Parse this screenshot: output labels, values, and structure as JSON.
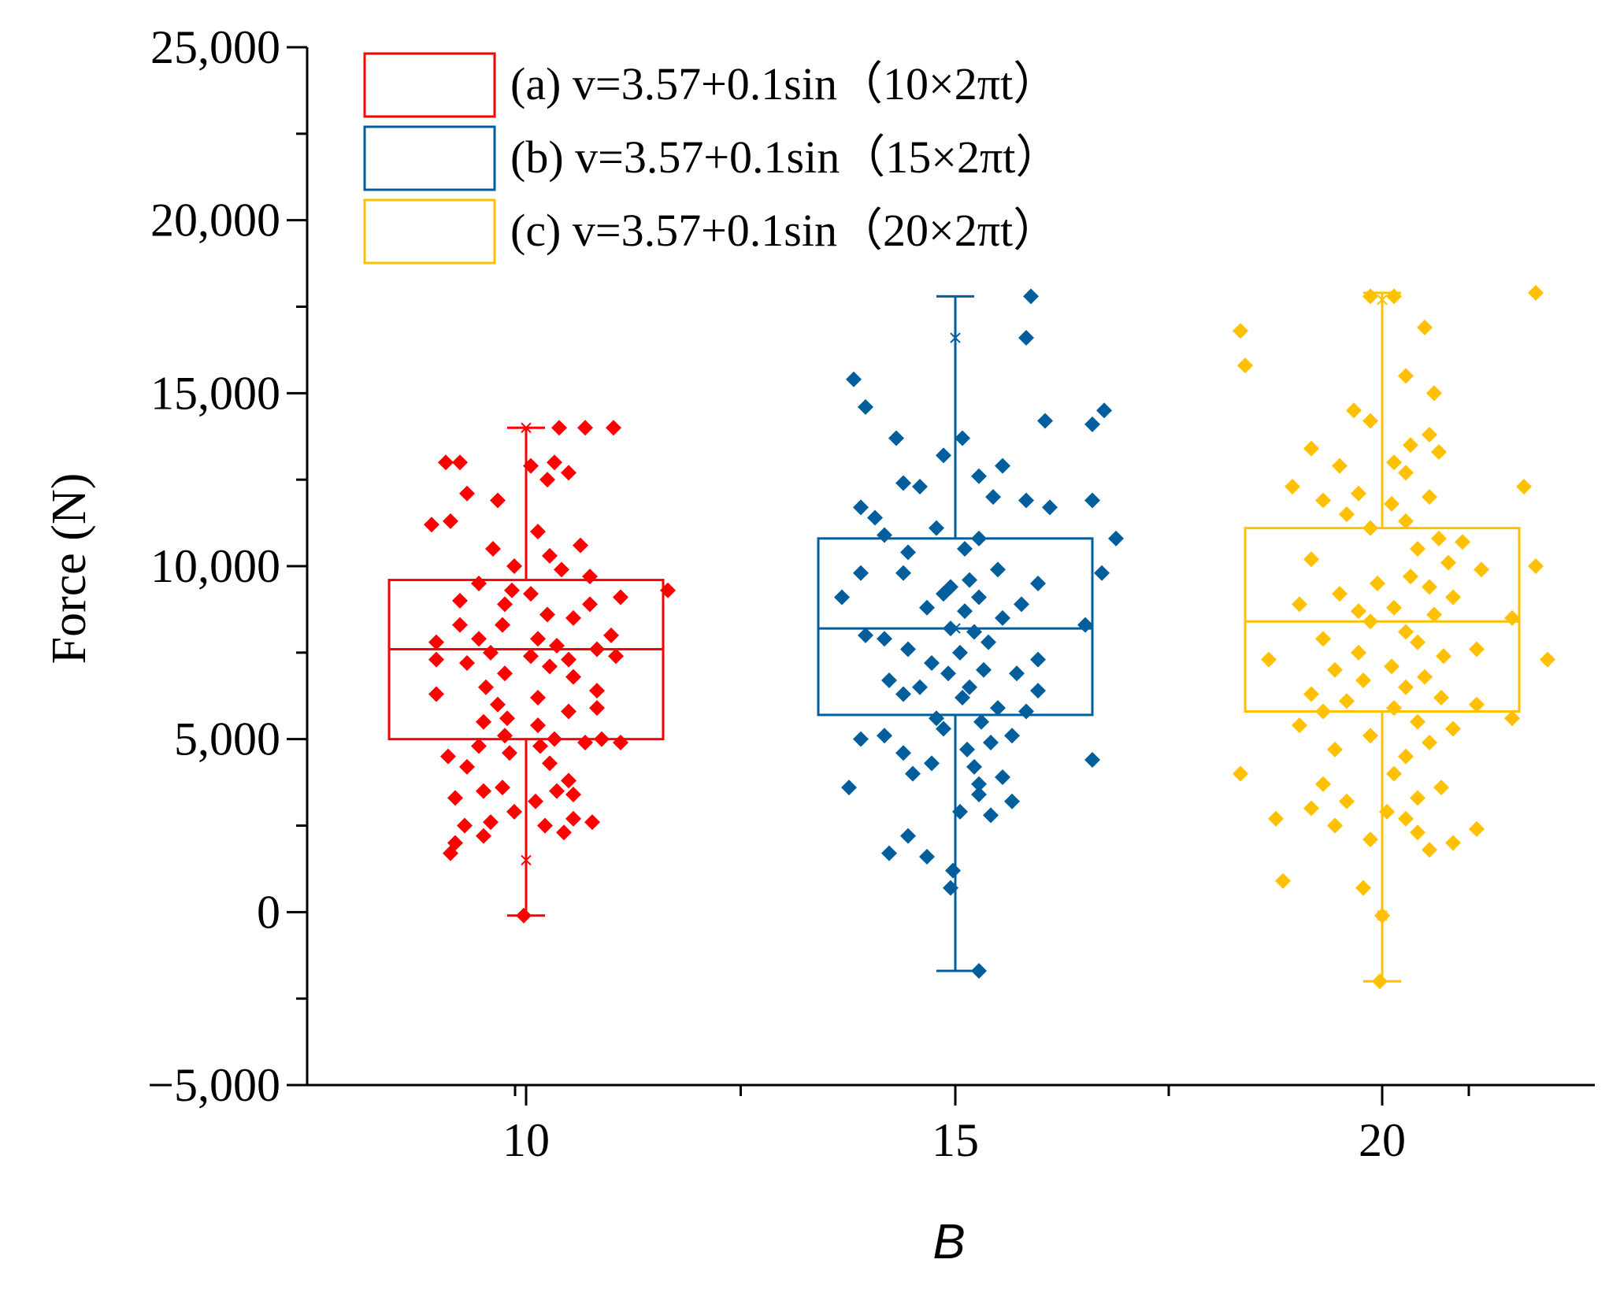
{
  "chart_data": {
    "type": "box",
    "title": "",
    "xlabel": "B",
    "ylabel": "Force (N)",
    "ylim": [
      -5000,
      25000
    ],
    "yticks": [
      -5000,
      0,
      5000,
      10000,
      15000,
      20000,
      25000
    ],
    "ytick_labels": [
      "−5,000",
      "0",
      "5,000",
      "10,000",
      "15,000",
      "20,000",
      "25,000"
    ],
    "categories": [
      "10",
      "15",
      "20"
    ],
    "legend_position": "top-left",
    "series": [
      {
        "name": "(a) v=3.57+0.1sin（10×2πt）",
        "category": "10",
        "color": "#ff0000",
        "q1": 5000,
        "median": 7600,
        "q3": 9600,
        "whisker_low": -100,
        "whisker_high": 14000,
        "max_marker": 14000,
        "min_marker": 1500,
        "points": [
          [
            -0.34,
            13000
          ],
          [
            -0.28,
            13000
          ],
          [
            -0.4,
            11200
          ],
          [
            -0.32,
            11300
          ],
          [
            -0.12,
            11900
          ],
          [
            -0.25,
            12100
          ],
          [
            0.02,
            12900
          ],
          [
            0.18,
            12700
          ],
          [
            0.09,
            12500
          ],
          [
            0.12,
            13000
          ],
          [
            0.37,
            14000
          ],
          [
            0.14,
            14000
          ],
          [
            0.25,
            14000
          ],
          [
            0.05,
            11000
          ],
          [
            -0.14,
            10500
          ],
          [
            0.23,
            10600
          ],
          [
            0.1,
            10300
          ],
          [
            -0.05,
            10000
          ],
          [
            0.15,
            9900
          ],
          [
            0.27,
            9700
          ],
          [
            -0.2,
            9500
          ],
          [
            -0.06,
            9300
          ],
          [
            0.02,
            9200
          ],
          [
            0.6,
            9300
          ],
          [
            0.4,
            9100
          ],
          [
            -0.28,
            9000
          ],
          [
            -0.09,
            8900
          ],
          [
            0.27,
            8900
          ],
          [
            0.09,
            8600
          ],
          [
            0.2,
            8500
          ],
          [
            -0.1,
            8300
          ],
          [
            -0.28,
            8300
          ],
          [
            0.36,
            8000
          ],
          [
            -0.2,
            7900
          ],
          [
            0.05,
            7900
          ],
          [
            0.13,
            7700
          ],
          [
            -0.38,
            7800
          ],
          [
            0.3,
            7600
          ],
          [
            -0.15,
            7500
          ],
          [
            0.02,
            7400
          ],
          [
            0.38,
            7400
          ],
          [
            0.18,
            7300
          ],
          [
            -0.38,
            7300
          ],
          [
            -0.25,
            7200
          ],
          [
            0.1,
            7100
          ],
          [
            -0.09,
            6900
          ],
          [
            0.2,
            6800
          ],
          [
            -0.17,
            6500
          ],
          [
            0.3,
            6400
          ],
          [
            -0.38,
            6300
          ],
          [
            0.05,
            6200
          ],
          [
            -0.12,
            6000
          ],
          [
            0.3,
            5900
          ],
          [
            0.18,
            5800
          ],
          [
            -0.08,
            5600
          ],
          [
            -0.18,
            5500
          ],
          [
            0.05,
            5400
          ],
          [
            -0.09,
            5100
          ],
          [
            0.12,
            5000
          ],
          [
            0.32,
            5000
          ],
          [
            0.4,
            4900
          ],
          [
            0.25,
            4900
          ],
          [
            -0.2,
            4800
          ],
          [
            0.06,
            4800
          ],
          [
            -0.33,
            4500
          ],
          [
            -0.07,
            4600
          ],
          [
            0.1,
            4300
          ],
          [
            -0.25,
            4200
          ],
          [
            0.18,
            3800
          ],
          [
            -0.1,
            3600
          ],
          [
            -0.18,
            3500
          ],
          [
            0.13,
            3500
          ],
          [
            0.2,
            3400
          ],
          [
            0.04,
            3200
          ],
          [
            -0.3,
            3300
          ],
          [
            -0.05,
            2900
          ],
          [
            0.2,
            2700
          ],
          [
            -0.15,
            2600
          ],
          [
            0.28,
            2600
          ],
          [
            -0.26,
            2500
          ],
          [
            0.08,
            2500
          ],
          [
            0.16,
            2300
          ],
          [
            -0.3,
            2000
          ],
          [
            -0.18,
            2200
          ],
          [
            -0.32,
            1700
          ],
          [
            -0.01,
            -100
          ]
        ]
      },
      {
        "name": "(b) v=3.57+0.1sin（15×2πt）",
        "category": "15",
        "color": "#005e9c",
        "q1": 5700,
        "median": 8200,
        "q3": 10800,
        "whisker_low": -1700,
        "whisker_high": 17800,
        "max_marker": 16600,
        "min_marker": 8200,
        "points": [
          [
            0.32,
            17800
          ],
          [
            0.3,
            16600
          ],
          [
            -0.43,
            15400
          ],
          [
            -0.38,
            14600
          ],
          [
            0.63,
            14500
          ],
          [
            0.38,
            14200
          ],
          [
            0.58,
            14100
          ],
          [
            -0.25,
            13700
          ],
          [
            0.03,
            13700
          ],
          [
            -0.05,
            13200
          ],
          [
            0.2,
            12900
          ],
          [
            0.1,
            12600
          ],
          [
            -0.15,
            12300
          ],
          [
            -0.22,
            12400
          ],
          [
            0.16,
            12000
          ],
          [
            0.3,
            11900
          ],
          [
            0.58,
            11900
          ],
          [
            0.4,
            11700
          ],
          [
            -0.4,
            11700
          ],
          [
            -0.34,
            11400
          ],
          [
            -0.08,
            11100
          ],
          [
            -0.3,
            10900
          ],
          [
            0.1,
            10800
          ],
          [
            0.68,
            10800
          ],
          [
            0.04,
            10500
          ],
          [
            -0.2,
            10400
          ],
          [
            -0.4,
            9800
          ],
          [
            -0.22,
            9800
          ],
          [
            0.18,
            9900
          ],
          [
            0.62,
            9800
          ],
          [
            0.06,
            9600
          ],
          [
            -0.02,
            9400
          ],
          [
            0.35,
            9500
          ],
          [
            -0.05,
            9200
          ],
          [
            0.1,
            9100
          ],
          [
            -0.48,
            9100
          ],
          [
            0.28,
            8900
          ],
          [
            -0.12,
            8800
          ],
          [
            0.04,
            8700
          ],
          [
            0.2,
            8500
          ],
          [
            0.55,
            8300
          ],
          [
            -0.02,
            8200
          ],
          [
            0.08,
            8100
          ],
          [
            -0.38,
            8000
          ],
          [
            -0.3,
            7900
          ],
          [
            0.14,
            7800
          ],
          [
            -0.2,
            7600
          ],
          [
            0.02,
            7500
          ],
          [
            0.35,
            7300
          ],
          [
            -0.1,
            7200
          ],
          [
            0.12,
            7000
          ],
          [
            -0.03,
            6900
          ],
          [
            0.26,
            6900
          ],
          [
            -0.28,
            6700
          ],
          [
            -0.15,
            6500
          ],
          [
            0.06,
            6500
          ],
          [
            0.35,
            6400
          ],
          [
            -0.22,
            6300
          ],
          [
            0.03,
            6200
          ],
          [
            0.18,
            5900
          ],
          [
            0.3,
            5800
          ],
          [
            -0.08,
            5600
          ],
          [
            0.11,
            5500
          ],
          [
            -0.05,
            5300
          ],
          [
            0.24,
            5100
          ],
          [
            -0.4,
            5000
          ],
          [
            -0.3,
            5100
          ],
          [
            0.15,
            4900
          ],
          [
            0.05,
            4700
          ],
          [
            -0.22,
            4600
          ],
          [
            0.58,
            4400
          ],
          [
            -0.1,
            4300
          ],
          [
            0.08,
            4200
          ],
          [
            -0.18,
            4000
          ],
          [
            0.2,
            3900
          ],
          [
            0.1,
            3700
          ],
          [
            -0.45,
            3600
          ],
          [
            0.1,
            3400
          ],
          [
            0.24,
            3200
          ],
          [
            0.02,
            2900
          ],
          [
            0.15,
            2800
          ],
          [
            -0.2,
            2200
          ],
          [
            -0.28,
            1700
          ],
          [
            -0.12,
            1600
          ],
          [
            -0.01,
            1200
          ],
          [
            -0.02,
            700
          ],
          [
            0.1,
            -1700
          ]
        ]
      },
      {
        "name": "(c) v=3.57+0.1sin（20×2πt）",
        "category": "20",
        "color": "#ffc000",
        "q1": 5800,
        "median": 8400,
        "q3": 11100,
        "whisker_low": -2000,
        "whisker_high": 17900,
        "max_marker": 17700,
        "min_marker": -100,
        "points": [
          [
            0.65,
            17900
          ],
          [
            -0.05,
            17800
          ],
          [
            0.05,
            17800
          ],
          [
            -0.6,
            16800
          ],
          [
            0.18,
            16900
          ],
          [
            0.1,
            15500
          ],
          [
            -0.58,
            15800
          ],
          [
            0.22,
            15000
          ],
          [
            -0.12,
            14500
          ],
          [
            -0.05,
            14200
          ],
          [
            0.2,
            13800
          ],
          [
            0.12,
            13500
          ],
          [
            -0.3,
            13400
          ],
          [
            0.24,
            13300
          ],
          [
            0.05,
            13000
          ],
          [
            -0.18,
            12900
          ],
          [
            0.1,
            12700
          ],
          [
            -0.38,
            12300
          ],
          [
            -0.1,
            12100
          ],
          [
            0.6,
            12300
          ],
          [
            0.2,
            12000
          ],
          [
            -0.25,
            11900
          ],
          [
            0.04,
            11800
          ],
          [
            -0.15,
            11500
          ],
          [
            0.1,
            11300
          ],
          [
            -0.05,
            11100
          ],
          [
            0.24,
            10800
          ],
          [
            0.34,
            10700
          ],
          [
            0.15,
            10500
          ],
          [
            -0.3,
            10200
          ],
          [
            0.28,
            10100
          ],
          [
            0.65,
            10000
          ],
          [
            0.42,
            9900
          ],
          [
            0.12,
            9700
          ],
          [
            -0.02,
            9500
          ],
          [
            0.2,
            9400
          ],
          [
            -0.18,
            9200
          ],
          [
            0.3,
            9100
          ],
          [
            -0.35,
            8900
          ],
          [
            0.05,
            8800
          ],
          [
            -0.1,
            8700
          ],
          [
            0.22,
            8600
          ],
          [
            0.55,
            8500
          ],
          [
            -0.05,
            8400
          ],
          [
            0.1,
            8100
          ],
          [
            -0.25,
            7900
          ],
          [
            0.15,
            7800
          ],
          [
            0.4,
            7600
          ],
          [
            -0.1,
            7500
          ],
          [
            0.26,
            7400
          ],
          [
            -0.48,
            7300
          ],
          [
            0.7,
            7300
          ],
          [
            0.04,
            7100
          ],
          [
            -0.2,
            7000
          ],
          [
            0.18,
            6800
          ],
          [
            -0.08,
            6700
          ],
          [
            0.1,
            6500
          ],
          [
            -0.3,
            6300
          ],
          [
            0.25,
            6200
          ],
          [
            -0.15,
            6100
          ],
          [
            0.4,
            6000
          ],
          [
            0.05,
            5900
          ],
          [
            -0.25,
            5800
          ],
          [
            0.55,
            5600
          ],
          [
            0.15,
            5500
          ],
          [
            -0.35,
            5400
          ],
          [
            0.3,
            5300
          ],
          [
            -0.05,
            5100
          ],
          [
            0.2,
            4900
          ],
          [
            -0.2,
            4700
          ],
          [
            0.1,
            4500
          ],
          [
            -0.6,
            4000
          ],
          [
            0.05,
            4000
          ],
          [
            -0.25,
            3700
          ],
          [
            0.25,
            3600
          ],
          [
            0.15,
            3300
          ],
          [
            -0.15,
            3200
          ],
          [
            -0.3,
            3000
          ],
          [
            0.02,
            2900
          ],
          [
            0.1,
            2700
          ],
          [
            -0.45,
            2700
          ],
          [
            -0.2,
            2500
          ],
          [
            0.4,
            2400
          ],
          [
            0.15,
            2300
          ],
          [
            -0.05,
            2100
          ],
          [
            0.3,
            2000
          ],
          [
            0.2,
            1800
          ],
          [
            -0.42,
            900
          ],
          [
            -0.08,
            700
          ],
          [
            0.0,
            -100
          ],
          [
            -0.01,
            -2000
          ]
        ]
      }
    ]
  }
}
